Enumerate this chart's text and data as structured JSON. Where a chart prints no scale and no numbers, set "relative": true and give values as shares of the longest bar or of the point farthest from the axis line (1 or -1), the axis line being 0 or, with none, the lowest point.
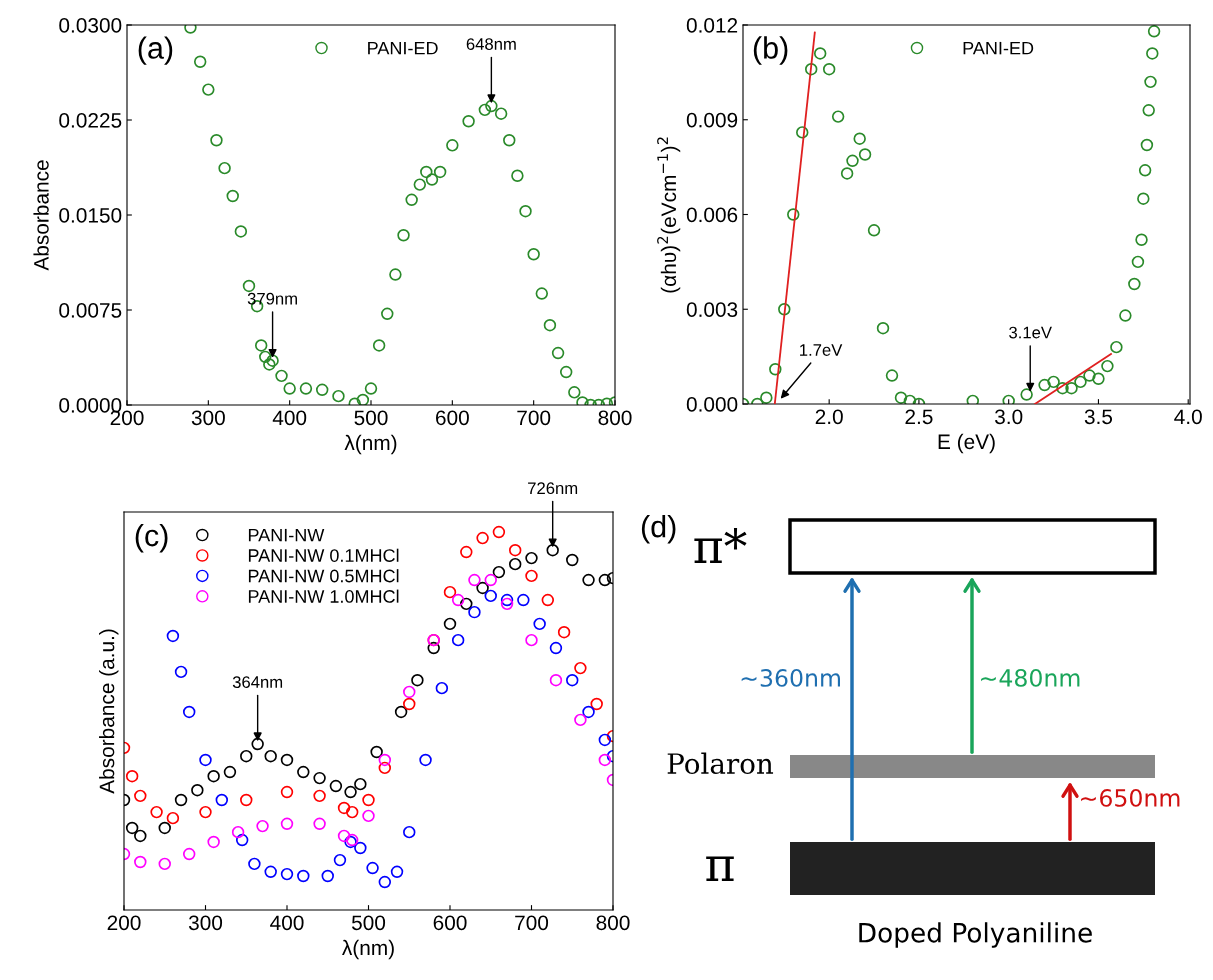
{
  "chart_data": [
    {
      "type": "scatter",
      "title": "(a)",
      "xlabel": "λ(nm)",
      "ylabel": "Absorbance",
      "marker": "circle",
      "legend": "top",
      "grid": false,
      "xlim": [
        200,
        800
      ],
      "xticks": [
        200,
        300,
        400,
        500,
        600,
        700,
        800
      ],
      "ylim": [
        0,
        0.03
      ],
      "yticks": [
        {
          "value": 0,
          "label": "0.0000"
        },
        {
          "value": 0.0075,
          "label": "0.0075"
        },
        {
          "value": 0.015,
          "label": "0.0150"
        },
        {
          "value": 0.0225,
          "label": "0.0225"
        },
        {
          "value": 0.03,
          "label": "0.0300"
        }
      ],
      "series": [
        {
          "name": "PANI-ED",
          "color": "#2a8a2a",
          "x": [
            278,
            290,
            300,
            310,
            320,
            330,
            340,
            350,
            360,
            365,
            370,
            375,
            379,
            390,
            400,
            420,
            440,
            460,
            480,
            490,
            500,
            510,
            520,
            530,
            540,
            550,
            560,
            568,
            575,
            585,
            600,
            620,
            640,
            648,
            660,
            670,
            680,
            690,
            700,
            710,
            720,
            730,
            740,
            750,
            760,
            770,
            780,
            790,
            800
          ],
          "values": [
            0.0298,
            0.0271,
            0.0249,
            0.0209,
            0.0187,
            0.0165,
            0.0137,
            0.0094,
            0.0078,
            0.0047,
            0.0038,
            0.0032,
            0.0035,
            0.0023,
            0.0013,
            0.0013,
            0.0012,
            0.0007,
            0.0001,
            0.0004,
            0.0013,
            0.0047,
            0.0072,
            0.0103,
            0.0134,
            0.0162,
            0.0174,
            0.0184,
            0.0178,
            0.0184,
            0.0205,
            0.0224,
            0.0233,
            0.0236,
            0.023,
            0.0209,
            0.0181,
            0.0153,
            0.0119,
            0.0088,
            0.0063,
            0.0041,
            0.0026,
            0.001,
            0.0002,
            0,
            0,
            0.0001,
            0.0002
          ]
        }
      ],
      "annotations": [
        {
          "text": "379nm",
          "x": 379,
          "y": 0.0035
        },
        {
          "text": "648nm",
          "x": 648,
          "y": 0.0236
        }
      ]
    },
    {
      "type": "scatter",
      "title": "(b)",
      "xlabel": "E (eV)",
      "ylabel": "(αhυ)$^{2}$(eVcm$^{−1}$)$^{2}$",
      "marker": "circle",
      "legend": "top",
      "grid": false,
      "xlim": [
        1.52,
        4.01
      ],
      "xticks": [
        {
          "value": 2,
          "label": "2.0"
        },
        {
          "value": 2.5,
          "label": "2.5"
        },
        {
          "value": 3,
          "label": "3.0"
        },
        {
          "value": 3.5,
          "label": "3.5"
        },
        {
          "value": 4,
          "label": "4.0"
        }
      ],
      "ylim": [
        0,
        0.012
      ],
      "yticks": [
        {
          "value": 0,
          "label": "0.000"
        },
        {
          "value": 0.003,
          "label": "0.003"
        },
        {
          "value": 0.006,
          "label": "0.006"
        },
        {
          "value": 0.009,
          "label": "0.009"
        },
        {
          "value": 0.012,
          "label": "0.012"
        }
      ],
      "series": [
        {
          "name": "PANI-ED",
          "color": "#2a8a2a",
          "x": [
            1.52,
            1.6,
            1.65,
            1.7,
            1.75,
            1.8,
            1.85,
            1.9,
            1.95,
            2.0,
            2.05,
            2.1,
            2.13,
            2.17,
            2.2,
            2.25,
            2.3,
            2.35,
            2.4,
            2.45,
            2.5,
            2.8,
            3.0,
            3.1,
            3.2,
            3.25,
            3.3,
            3.35,
            3.4,
            3.45,
            3.5,
            3.55,
            3.6,
            3.65,
            3.7,
            3.72,
            3.74,
            3.75,
            3.76,
            3.77,
            3.78,
            3.79,
            3.8,
            3.81
          ],
          "values": [
            0,
            0,
            0.0002,
            0.0011,
            0.003,
            0.006,
            0.0086,
            0.0106,
            0.0111,
            0.0106,
            0.0091,
            0.0073,
            0.0077,
            0.0084,
            0.0079,
            0.0055,
            0.0024,
            0.0009,
            0.0002,
            0.0001,
            0,
            0.0001,
            0.0001,
            0.0003,
            0.0006,
            0.0007,
            0.0005,
            0.0005,
            0.0007,
            0.0009,
            0.0008,
            0.0012,
            0.0018,
            0.0028,
            0.0038,
            0.0045,
            0.0052,
            0.0065,
            0.0074,
            0.0082,
            0.0093,
            0.0102,
            0.0111,
            0.0118
          ]
        },
        {
          "type": "line",
          "marker": "none",
          "color": "#e02020",
          "x": [
            1.697,
            1.92
          ],
          "values": [
            0,
            0.01176
          ]
        },
        {
          "type": "line",
          "marker": "none",
          "color": "#e02020",
          "x": [
            3.146,
            3.57
          ],
          "values": [
            0,
            0.00158
          ]
        }
      ],
      "annotations": [
        {
          "text": "1.7eV",
          "x": 1.72,
          "y": 0.0001
        },
        {
          "text": "3.1eV",
          "x": 3.12,
          "y": 0.0003
        }
      ]
    },
    {
      "type": "scatter",
      "title": "(c)",
      "xlabel": "λ(nm)",
      "ylabel": "Absorbance (a.u.)",
      "marker": "circle",
      "legend": "top left",
      "grid": false,
      "relative": true,
      "tick_labels": "x",
      "xlim": [
        200,
        800
      ],
      "xticks": [
        200,
        300,
        400,
        500,
        600,
        700,
        800
      ],
      "series": [
        {
          "name": "PANI-NW",
          "color": "#000000",
          "x": [
            200,
            210,
            220,
            250,
            270,
            290,
            310,
            330,
            350,
            364,
            380,
            400,
            420,
            440,
            460,
            478,
            490,
            510,
            540,
            560,
            580,
            600,
            620,
            640,
            660,
            680,
            700,
            726,
            750,
            770,
            790,
            800
          ],
          "values": [
            0.291,
            0.217,
            0.196,
            0.217,
            0.291,
            0.317,
            0.354,
            0.365,
            0.407,
            0.439,
            0.407,
            0.397,
            0.365,
            0.349,
            0.328,
            0.312,
            0.333,
            0.418,
            0.524,
            0.608,
            0.693,
            0.757,
            0.81,
            0.852,
            0.894,
            0.915,
            0.931,
            0.952,
            0.926,
            0.873,
            0.873,
            0.878
          ]
        },
        {
          "name": "PANI-NW 0.1MHCl",
          "color": "#ff0000",
          "x": [
            200,
            210,
            220,
            240,
            260,
            300,
            350,
            400,
            440,
            470,
            480,
            500,
            520,
            550,
            580,
            600,
            620,
            640,
            660,
            680,
            700,
            720,
            740,
            760,
            780,
            800
          ],
          "values": [
            0.429,
            0.354,
            0.302,
            0.259,
            0.243,
            0.259,
            0.291,
            0.312,
            0.302,
            0.27,
            0.259,
            0.291,
            0.376,
            0.545,
            0.714,
            0.841,
            0.947,
            0.984,
            1.0,
            0.952,
            0.884,
            0.82,
            0.735,
            0.64,
            0.545,
            0.46
          ]
        },
        {
          "name": "PANI-NW 0.5MHCl",
          "color": "#0000ff",
          "x": [
            260,
            270,
            280,
            300,
            320,
            345,
            360,
            380,
            400,
            420,
            450,
            465,
            478,
            490,
            505,
            520,
            535,
            550,
            570,
            590,
            610,
            630,
            650,
            670,
            690,
            710,
            730,
            750,
            770,
            790,
            800
          ],
          "values": [
            0.725,
            0.63,
            0.524,
            0.397,
            0.291,
            0.185,
            0.122,
            0.101,
            0.095,
            0.09,
            0.09,
            0.132,
            0.18,
            0.164,
            0.111,
            0.074,
            0.101,
            0.206,
            0.397,
            0.587,
            0.714,
            0.788,
            0.831,
            0.82,
            0.82,
            0.757,
            0.693,
            0.608,
            0.524,
            0.45,
            0.407
          ]
        },
        {
          "name": "PANI-NW 1.0MHCl",
          "color": "#ff00ff",
          "x": [
            200,
            220,
            250,
            280,
            310,
            340,
            370,
            400,
            440,
            470,
            480,
            500,
            520,
            550,
            580,
            610,
            630,
            650,
            670,
            700,
            730,
            760,
            790,
            800
          ],
          "values": [
            0.148,
            0.127,
            0.122,
            0.148,
            0.18,
            0.206,
            0.222,
            0.228,
            0.228,
            0.196,
            0.185,
            0.249,
            0.397,
            0.577,
            0.714,
            0.82,
            0.873,
            0.873,
            0.81,
            0.714,
            0.608,
            0.503,
            0.397,
            0.344
          ]
        }
      ],
      "annotations": [
        {
          "text": "364nm",
          "x": 364,
          "y": 0.439
        },
        {
          "text": "726nm",
          "x": 726,
          "y": 0.952
        }
      ]
    },
    {
      "type": "other",
      "title": "(d)",
      "annotations": [
        "π*",
        "Polaron",
        "π",
        "~360nm",
        "~480nm",
        "~650nm",
        "Doped Polyaniline"
      ]
    }
  ]
}
